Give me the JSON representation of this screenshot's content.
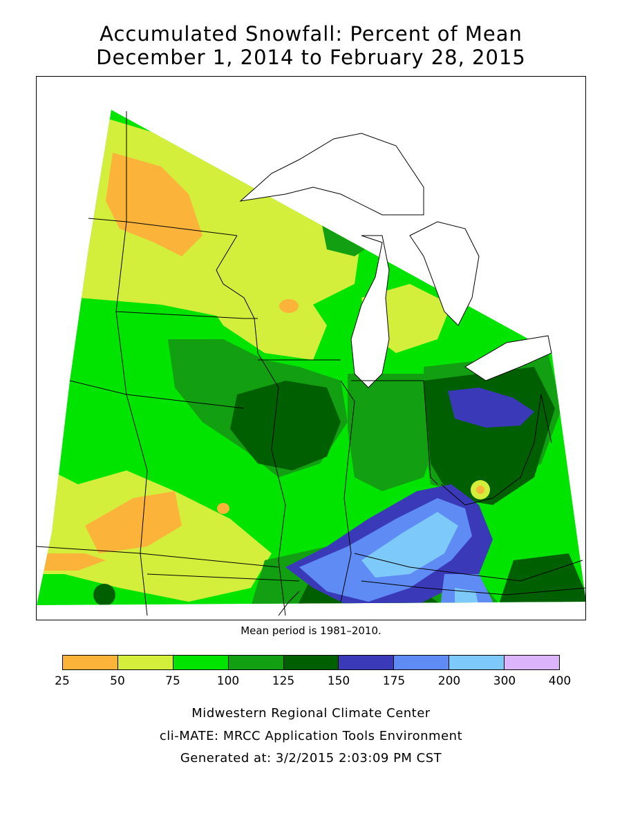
{
  "title_line1": "Accumulated Snowfall: Percent of Mean",
  "title_line2": "December 1, 2014 to February 28, 2015",
  "mean_note": "Mean period is 1981–2010.",
  "legend": {
    "bins": [
      {
        "from": 25,
        "to": 50,
        "color": "#fbb33a"
      },
      {
        "from": 50,
        "to": 75,
        "color": "#d3ef3c"
      },
      {
        "from": 75,
        "to": 100,
        "color": "#00e400"
      },
      {
        "from": 100,
        "to": 125,
        "color": "#12a012"
      },
      {
        "from": 125,
        "to": 150,
        "color": "#005f00"
      },
      {
        "from": 150,
        "to": 175,
        "color": "#3a3ab8"
      },
      {
        "from": 175,
        "to": 200,
        "color": "#5f8bf5"
      },
      {
        "from": 200,
        "to": 300,
        "color": "#7dcafa"
      },
      {
        "from": 300,
        "to": 400,
        "color": "#dbb4fb"
      }
    ],
    "ticks": [
      "25",
      "50",
      "75",
      "100",
      "125",
      "150",
      "175",
      "200",
      "300",
      "400"
    ]
  },
  "credits": {
    "line1": "Midwestern Regional Climate Center",
    "line2": "cli-MATE: MRCC Application Tools Environment",
    "line3": "Generated at: 3/2/2015 2:03:09 PM CST"
  }
}
